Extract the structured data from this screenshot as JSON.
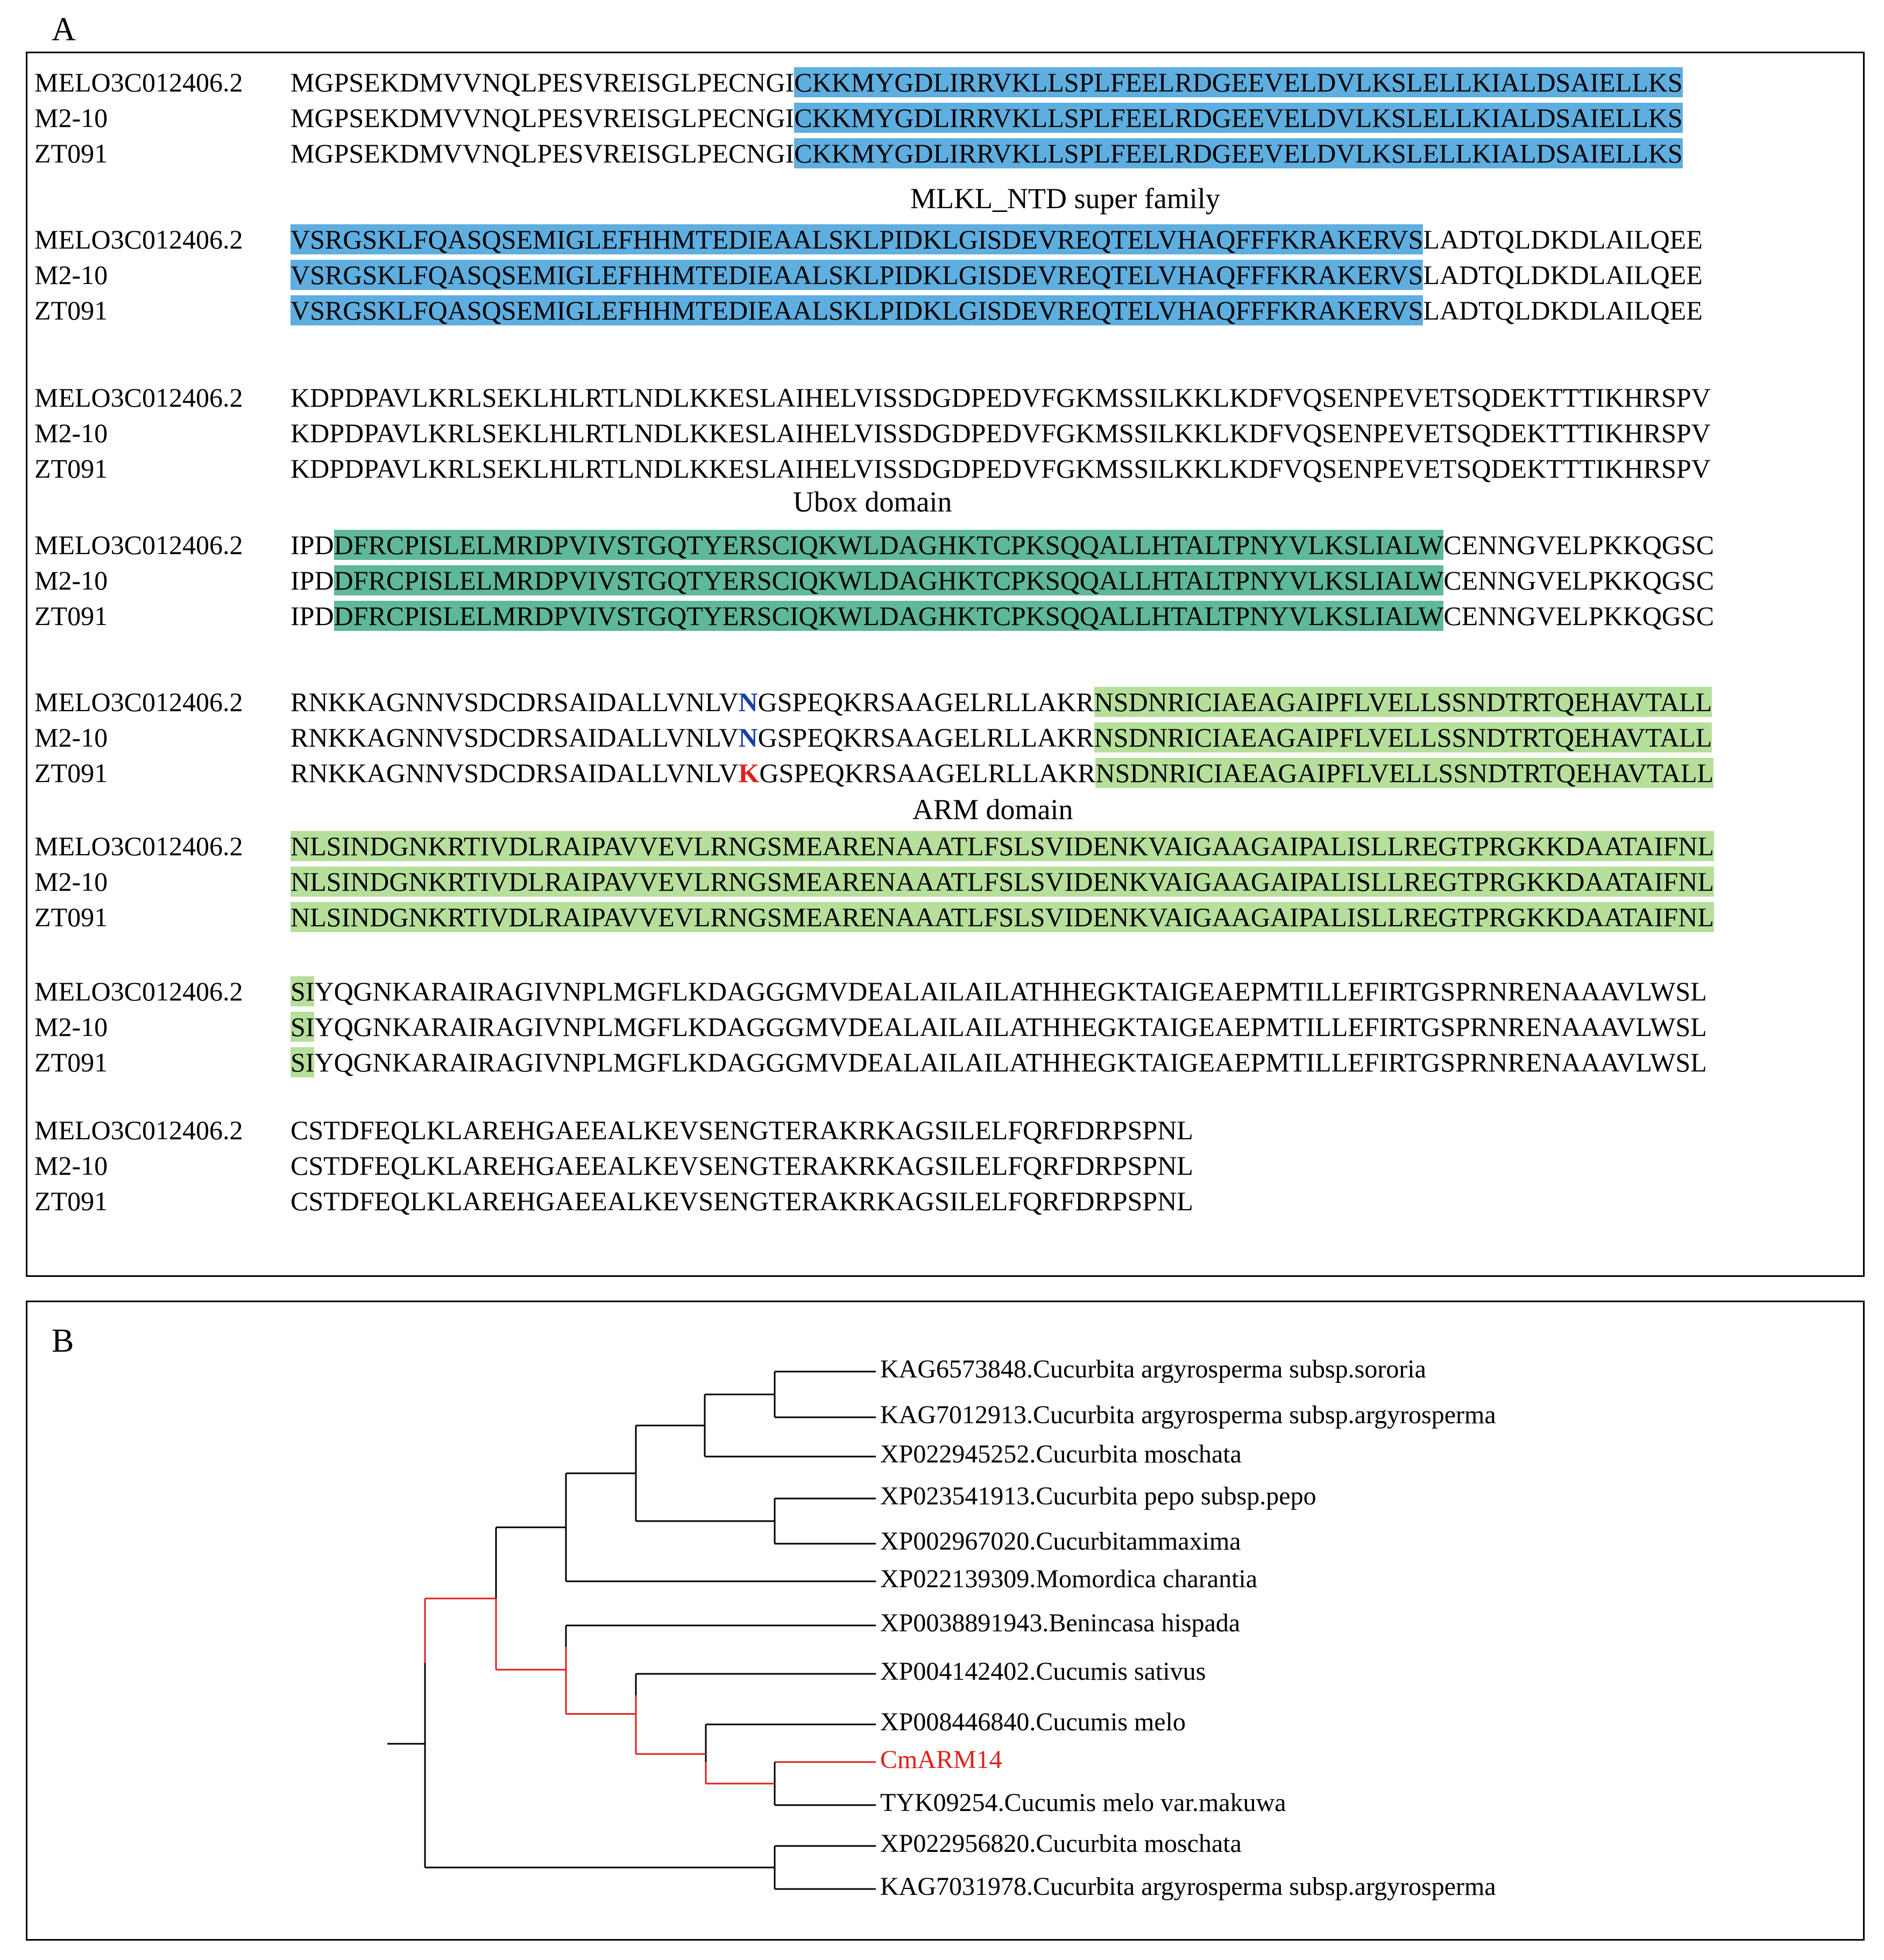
{
  "panel_a": {
    "label": "A",
    "domain_labels": {
      "mlkl": "MLKL_NTD super family",
      "ubox": "Ubox domain",
      "arm": "ARM domain"
    },
    "blocks": [
      {
        "rows": [
          {
            "name": "MELO3C012406.2",
            "segments": [
              {
                "text": "MGPSEKDMVVNQLPESVREISGLPECNGI",
                "style": ""
              },
              {
                "text": "CKKMYGDLIRRVKLLSPLFEELRDGEEVELDVLKSLELLKIALDSAIELLKS",
                "style": "blue"
              }
            ]
          },
          {
            "name": "M2-10",
            "segments": [
              {
                "text": "MGPSEKDMVVNQLPESVREISGLPECNGI",
                "style": ""
              },
              {
                "text": "CKKMYGDLIRRVKLLSPLFEELRDGEEVELDVLKSLELLKIALDSAIELLKS",
                "style": "blue"
              }
            ]
          },
          {
            "name": "ZT091",
            "segments": [
              {
                "text": "MGPSEKDMVVNQLPESVREISGLPECNGI",
                "style": ""
              },
              {
                "text": "CKKMYGDLIRRVKLLSPLFEELRDGEEVELDVLKSLELLKIALDSAIELLKS",
                "style": "blue"
              }
            ]
          }
        ]
      },
      {
        "rows": [
          {
            "name": "MELO3C012406.2",
            "segments": [
              {
                "text": "VSRGSKLFQASQSEMIGLEFHHMTEDIEAALSKLPIDKLGISDEVREQTELVHAQFFFKRAKERVS",
                "style": "blue"
              },
              {
                "text": "LADTQLDKDLAILQEE",
                "style": ""
              }
            ]
          },
          {
            "name": "M2-10",
            "segments": [
              {
                "text": "VSRGSKLFQASQSEMIGLEFHHMTEDIEAALSKLPIDKLGISDEVREQTELVHAQFFFKRAKERVS",
                "style": "blue"
              },
              {
                "text": "LADTQLDKDLAILQEE",
                "style": ""
              }
            ]
          },
          {
            "name": "ZT091",
            "segments": [
              {
                "text": "VSRGSKLFQASQSEMIGLEFHHMTEDIEAALSKLPIDKLGISDEVREQTELVHAQFFFKRAKERVS",
                "style": "blue"
              },
              {
                "text": "LADTQLDKDLAILQEE",
                "style": ""
              }
            ]
          }
        ]
      },
      {
        "rows": [
          {
            "name": "MELO3C012406.2",
            "segments": [
              {
                "text": "KDPDPAVLKRLSEKLHLRTLNDLKKESLAIHELVISSDGDPEDVFGKMSSILKKLKDFVQSENPEVETSQDEKTTTIKHRSPV",
                "style": ""
              }
            ]
          },
          {
            "name": "M2-10",
            "segments": [
              {
                "text": "KDPDPAVLKRLSEKLHLRTLNDLKKESLAIHELVISSDGDPEDVFGKMSSILKKLKDFVQSENPEVETSQDEKTTTIKHRSPV",
                "style": ""
              }
            ]
          },
          {
            "name": "ZT091",
            "segments": [
              {
                "text": "KDPDPAVLKRLSEKLHLRTLNDLKKESLAIHELVISSDGDPEDVFGKMSSILKKLKDFVQSENPEVETSQDEKTTTIKHRSPV",
                "style": ""
              }
            ]
          }
        ]
      },
      {
        "rows": [
          {
            "name": "MELO3C012406.2",
            "segments": [
              {
                "text": "IPD",
                "style": ""
              },
              {
                "text": "DFRCPISLELMRDPVIVSTGQTYERSCIQKWLDAGHKTCPKSQQALLHTALTPNYVLKSLIALW",
                "style": "teal"
              },
              {
                "text": "CENNGVELPKKQGSC",
                "style": ""
              }
            ]
          },
          {
            "name": "M2-10",
            "segments": [
              {
                "text": "IPD",
                "style": ""
              },
              {
                "text": "DFRCPISLELMRDPVIVSTGQTYERSCIQKWLDAGHKTCPKSQQALLHTALTPNYVLKSLIALW",
                "style": "teal"
              },
              {
                "text": "CENNGVELPKKQGSC",
                "style": ""
              }
            ]
          },
          {
            "name": "ZT091",
            "segments": [
              {
                "text": "IPD",
                "style": ""
              },
              {
                "text": "DFRCPISLELMRDPVIVSTGQTYERSCIQKWLDAGHKTCPKSQQALLHTALTPNYVLKSLIALW",
                "style": "teal"
              },
              {
                "text": "CENNGVELPKKQGSC",
                "style": ""
              }
            ]
          }
        ]
      },
      {
        "rows": [
          {
            "name": "MELO3C012406.2",
            "segments": [
              {
                "text": "RNKKAGNNVSDCDRSAIDALLVNLV",
                "style": ""
              },
              {
                "text": "N",
                "style": "mut-n"
              },
              {
                "text": "GSPEQKRSAAGELRLLAKR",
                "style": ""
              },
              {
                "text": "NSDNRICIAEAGAIPFLVELLSSNDTRTQEHAVTALL",
                "style": "green"
              }
            ]
          },
          {
            "name": "M2-10",
            "segments": [
              {
                "text": "RNKKAGNNVSDCDRSAIDALLVNLV",
                "style": ""
              },
              {
                "text": "N",
                "style": "mut-n"
              },
              {
                "text": "GSPEQKRSAAGELRLLAKR",
                "style": ""
              },
              {
                "text": "NSDNRICIAEAGAIPFLVELLSSNDTRTQEHAVTALL",
                "style": "green"
              }
            ]
          },
          {
            "name": "ZT091",
            "segments": [
              {
                "text": "RNKKAGNNVSDCDRSAIDALLVNLV",
                "style": ""
              },
              {
                "text": "K",
                "style": "mut-k"
              },
              {
                "text": "GSPEQKRSAAGELRLLAKR",
                "style": ""
              },
              {
                "text": "NSDNRICIAEAGAIPFLVELLSSNDTRTQEHAVTALL",
                "style": "green"
              }
            ]
          }
        ]
      },
      {
        "rows": [
          {
            "name": "MELO3C012406.2",
            "segments": [
              {
                "text": "NLSINDGNKRTIVDLRAIPAVVEVLRNGSMEARENAAATLFSLSVIDENKVAIGAAGAIPALISLLREGTPRGKKDAATAIFNL",
                "style": "green"
              }
            ]
          },
          {
            "name": "M2-10",
            "segments": [
              {
                "text": "NLSINDGNKRTIVDLRAIPAVVEVLRNGSMEARENAAATLFSLSVIDENKVAIGAAGAIPALISLLREGTPRGKKDAATAIFNL",
                "style": "green"
              }
            ]
          },
          {
            "name": "ZT091",
            "segments": [
              {
                "text": "NLSINDGNKRTIVDLRAIPAVVEVLRNGSMEARENAAATLFSLSVIDENKVAIGAAGAIPALISLLREGTPRGKKDAATAIFNL",
                "style": "green"
              }
            ]
          }
        ]
      },
      {
        "rows": [
          {
            "name": "MELO3C012406.2",
            "segments": [
              {
                "text": "SI",
                "style": "green"
              },
              {
                "text": "YQGNKARAIRAGIVNPLMGFLKDAGGGMVDEALAILAILATHHEGKTAIGEAEPMTILLEFIRTGSPRNRENAAAVLWSL",
                "style": ""
              }
            ]
          },
          {
            "name": "M2-10",
            "segments": [
              {
                "text": "SI",
                "style": "green"
              },
              {
                "text": "YQGNKARAIRAGIVNPLMGFLKDAGGGMVDEALAILAILATHHEGKTAIGEAEPMTILLEFIRTGSPRNRENAAAVLWSL",
                "style": ""
              }
            ]
          },
          {
            "name": "ZT091",
            "segments": [
              {
                "text": "SI",
                "style": "green"
              },
              {
                "text": "YQGNKARAIRAGIVNPLMGFLKDAGGGMVDEALAILAILATHHEGKTAIGEAEPMTILLEFIRTGSPRNRENAAAVLWSL",
                "style": ""
              }
            ]
          }
        ]
      },
      {
        "rows": [
          {
            "name": "MELO3C012406.2",
            "segments": [
              {
                "text": "CSTDFEQLKLAREHGAEEALKEVSENGTERAKRKAGSILELFQRFDRPSPNL",
                "style": ""
              }
            ]
          },
          {
            "name": "M2-10",
            "segments": [
              {
                "text": "CSTDFEQLKLAREHGAEEALKEVSENGTERAKRKAGSILELFQRFDRPSPNL",
                "style": ""
              }
            ]
          },
          {
            "name": "ZT091",
            "segments": [
              {
                "text": "CSTDFEQLKLAREHGAEEALKEVSENGTERAKRKAGSILELFQRFDRPSPNL",
                "style": ""
              }
            ]
          }
        ]
      }
    ]
  },
  "panel_b": {
    "label": "B",
    "highlight_color": "#e0201a",
    "leaves": [
      {
        "label": "KAG6573848.Cucurbita argyrosperma subsp.sororia",
        "highlight": false
      },
      {
        "label": "KAG7012913.Cucurbita argyrosperma subsp.argyrosperma",
        "highlight": false
      },
      {
        "label": "XP022945252.Cucurbita moschata",
        "highlight": false
      },
      {
        "label": "XP023541913.Cucurbita pepo subsp.pepo",
        "highlight": false
      },
      {
        "label": "XP002967020.Cucurbitammaxima",
        "highlight": false
      },
      {
        "label": "XP022139309.Momordica charantia",
        "highlight": false
      },
      {
        "label": "XP0038891943.Benincasa hispada",
        "highlight": false
      },
      {
        "label": "XP004142402.Cucumis sativus",
        "highlight": false
      },
      {
        "label": "XP008446840.Cucumis melo",
        "highlight": false
      },
      {
        "label": "CmARM14",
        "highlight": true
      },
      {
        "label": "TYK09254.Cucumis melo var.makuwa",
        "highlight": false
      },
      {
        "label": "XP022956820.Cucurbita moschata",
        "highlight": false
      },
      {
        "label": "KAG7031978.Cucurbita argyrosperma subsp.argyrosperma",
        "highlight": false
      }
    ]
  }
}
